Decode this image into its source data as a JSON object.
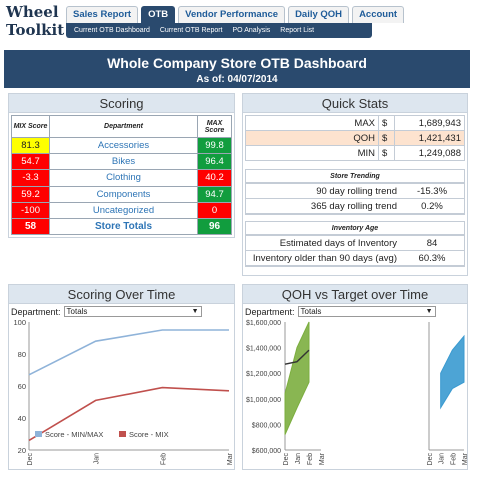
{
  "logo": {
    "line1": "Wheel",
    "line2": "Toolkit"
  },
  "nav": {
    "tabs": [
      {
        "label": "Sales Report"
      },
      {
        "label": "OTB"
      },
      {
        "label": "Vendor Performance"
      },
      {
        "label": "Daily QOH"
      },
      {
        "label": "Account"
      }
    ],
    "subnav": [
      {
        "label": "Current OTB Dashboard"
      },
      {
        "label": "Current OTB Report"
      },
      {
        "label": "PO Analysis"
      },
      {
        "label": "Report List"
      }
    ]
  },
  "banner": {
    "title": "Whole Company Store OTB Dashboard",
    "as_of": "As of: 04/07/2014"
  },
  "scoring": {
    "title": "Scoring",
    "headers": {
      "mix": "MIX Score",
      "dept": "Department",
      "max": "MAX Score"
    },
    "rows": [
      {
        "mix": "81.3",
        "dept": "Accessories",
        "max": "99.8",
        "mix_color": "yellow",
        "max_color": "green"
      },
      {
        "mix": "54.7",
        "dept": "Bikes",
        "max": "96.4",
        "mix_color": "red",
        "max_color": "green"
      },
      {
        "mix": "-3.3",
        "dept": "Clothing",
        "max": "40.2",
        "mix_color": "red",
        "max_color": "red"
      },
      {
        "mix": "59.2",
        "dept": "Components",
        "max": "94.7",
        "mix_color": "red",
        "max_color": "green"
      },
      {
        "mix": "-100",
        "dept": "Uncategorized",
        "max": "0",
        "mix_color": "red",
        "max_color": "red"
      }
    ],
    "totals": {
      "mix": "58",
      "dept": "Store Totals",
      "max": "96",
      "mix_color": "red",
      "max_color": "green"
    }
  },
  "quick_stats": {
    "title": "Quick Stats",
    "rows": [
      {
        "label": "MAX",
        "cur": "$",
        "value": "1,689,943"
      },
      {
        "label": "QOH",
        "cur": "$",
        "value": "1,421,431"
      },
      {
        "label": "MIN",
        "cur": "$",
        "value": "1,249,088"
      }
    ],
    "trending": {
      "title": "Store Trending",
      "rows": [
        {
          "label": "90 day rolling trend",
          "value": "-15.3%"
        },
        {
          "label": "365 day rolling trend",
          "value": "0.2%"
        }
      ]
    },
    "inventory_age": {
      "title": "Inventory Age",
      "rows": [
        {
          "label": "Estimated days of Inventory",
          "value": "84"
        },
        {
          "label": "Inventory older than 90 days (avg)",
          "value": "60.3%"
        }
      ]
    }
  },
  "colors": {
    "yellow": "#ffff00",
    "red": "#ff0000",
    "green": "#119d3e",
    "navy": "#2a4a6e"
  },
  "chart_data": [
    {
      "type": "line",
      "title": "Scoring Over Time",
      "filter_label": "Department:",
      "filter_value": "Totals",
      "categories": [
        "Dec",
        "Jan",
        "Feb",
        "Mar"
      ],
      "ylim": [
        20,
        100
      ],
      "yticks": [
        "20",
        "40",
        "60",
        "80",
        "100"
      ],
      "series": [
        {
          "name": "Score - MIN/MAX",
          "color": "#8fb3d9",
          "values": [
            67,
            88,
            95,
            95
          ]
        },
        {
          "name": "Score - MIX",
          "color": "#c0504d",
          "values": [
            26,
            51,
            59,
            57
          ]
        }
      ]
    },
    {
      "type": "area",
      "title": "QOH vs Target over Time",
      "filter_label": "Department:",
      "filter_value": "Totals",
      "left": {
        "categories": [
          "Dec",
          "Jan",
          "Feb",
          "Mar"
        ],
        "band_low": [
          720000,
          930000,
          1130000,
          1130000
        ],
        "band_high": [
          1040000,
          1400000,
          1600000,
          1600000
        ],
        "qoh": [
          1270000,
          1290000,
          1380000,
          1380000
        ]
      },
      "right": {
        "categories": [
          "Dec",
          "Jan",
          "Feb",
          "Mar"
        ],
        "band_low": [
          710000,
          930000,
          1080000,
          1130000
        ],
        "band_high": [
          970000,
          1200000,
          1380000,
          1490000
        ]
      },
      "ylim": [
        600000,
        1600000
      ],
      "yticks": [
        "$600,000",
        "$800,000",
        "$1,000,000",
        "$1,200,000",
        "$1,400,000",
        "$1,600,000"
      ],
      "band_color": "#7cae3f",
      "band_color2": "#3a9ad0",
      "line_color": "#333333"
    }
  ]
}
